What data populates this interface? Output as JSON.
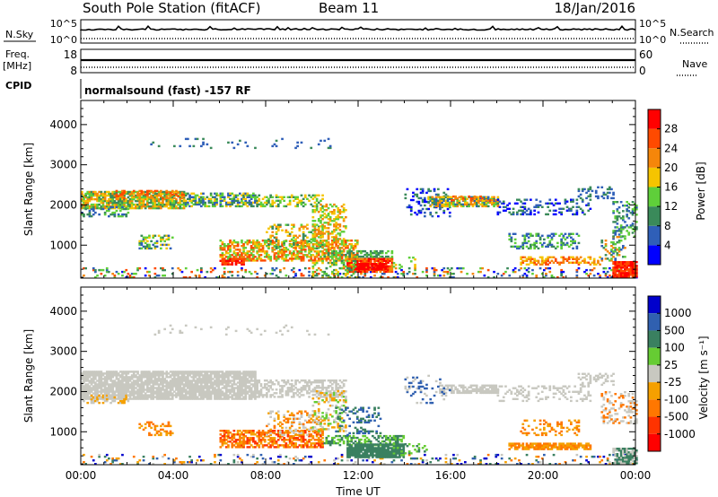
{
  "header": {
    "station": "South Pole Station (fitACF)",
    "beam": "Beam 11",
    "date": "18/Jan/2016"
  },
  "status_panels": {
    "nsky_label": "N.Sky",
    "nsearch_label": "N.Search",
    "freq_label": "Freq.",
    "freq_unit": "[MHz]",
    "nave_label": "Nave",
    "cpid_label": "CPID",
    "noise_ticks_left": [
      "10^5",
      "10^0"
    ],
    "noise_ticks_right": [
      "10^5",
      "10^0"
    ],
    "freq_ticks": [
      "18",
      "8"
    ],
    "nave_ticks": [
      "60",
      "0"
    ],
    "cpid_text": "normalsound (fast) -157 RF"
  },
  "colors": {
    "power": [
      "#0000ff",
      "#2f5fb8",
      "#3a8a5a",
      "#5fcf3a",
      "#f5c400",
      "#f5860a",
      "#ff4a00",
      "#ff0000"
    ],
    "velocity": [
      "#0000cc",
      "#3060b0",
      "#3a8060",
      "#66cc33",
      "#c8c8c0",
      "#f5a000",
      "#ff7700",
      "#ff3300",
      "#ff0000"
    ],
    "axis": "#000000",
    "scatter_gray": "#c8c8c2"
  },
  "chart_data": [
    {
      "type": "heatmap",
      "title": "",
      "xlabel": "",
      "ylabel": "Slant Range [km]",
      "ylim": [
        180,
        4600
      ],
      "xlim_hours": [
        0,
        24
      ],
      "x_ticks": [
        "00:00",
        "04:00",
        "08:00",
        "12:00",
        "16:00",
        "20:00",
        "00:00"
      ],
      "y_ticks": [
        1000,
        2000,
        3000,
        4000
      ],
      "colorbar": {
        "label": "Power [dB]",
        "ticks": [
          "4",
          "8",
          "12",
          "16",
          "20",
          "24",
          "28"
        ],
        "range": [
          0,
          32
        ]
      },
      "regions": [
        {
          "t": [
            0.0,
            6.0
          ],
          "range": [
            1900,
            2350
          ],
          "value": "14-24"
        },
        {
          "t": [
            6.0,
            12.0
          ],
          "range": [
            500,
            1100
          ],
          "value": "18-28"
        },
        {
          "t": [
            11.5,
            13.5
          ],
          "range": [
            320,
            650
          ],
          "value": "26-30"
        },
        {
          "t": [
            15.0,
            18.0
          ],
          "range": [
            1950,
            2150
          ],
          "value": "10-22"
        },
        {
          "t": [
            23.0,
            24.0
          ],
          "range": [
            200,
            600
          ],
          "value": "28-32"
        }
      ]
    },
    {
      "type": "heatmap",
      "title": "",
      "xlabel": "Time UT",
      "ylabel": "Slant Range [km]",
      "ylim": [
        180,
        4600
      ],
      "xlim_hours": [
        0,
        24
      ],
      "x_ticks": [
        "00:00",
        "04:00",
        "08:00",
        "12:00",
        "16:00",
        "20:00",
        "00:00"
      ],
      "y_ticks": [
        1000,
        2000,
        3000,
        4000
      ],
      "colorbar": {
        "label": "Velocity [m s⁻¹]",
        "ticks": [
          "1000",
          "500",
          "100",
          "25",
          "-25",
          "-100",
          "-500",
          "-1000"
        ]
      },
      "regions": [
        {
          "t": [
            0.0,
            11.5
          ],
          "range": [
            1800,
            2500
          ],
          "value": "-25 to 25"
        },
        {
          "t": [
            6.0,
            10.5
          ],
          "range": [
            600,
            1000
          ],
          "value": "-500 to -100"
        },
        {
          "t": [
            11.5,
            14.0
          ],
          "range": [
            350,
            700
          ],
          "value": "100 to 500"
        },
        {
          "t": [
            15.5,
            18.0
          ],
          "range": [
            1950,
            2150
          ],
          "value": "-25 to 25"
        },
        {
          "t": [
            18.5,
            22.0
          ],
          "range": [
            550,
            700
          ],
          "value": "-500 to -100"
        }
      ]
    }
  ]
}
